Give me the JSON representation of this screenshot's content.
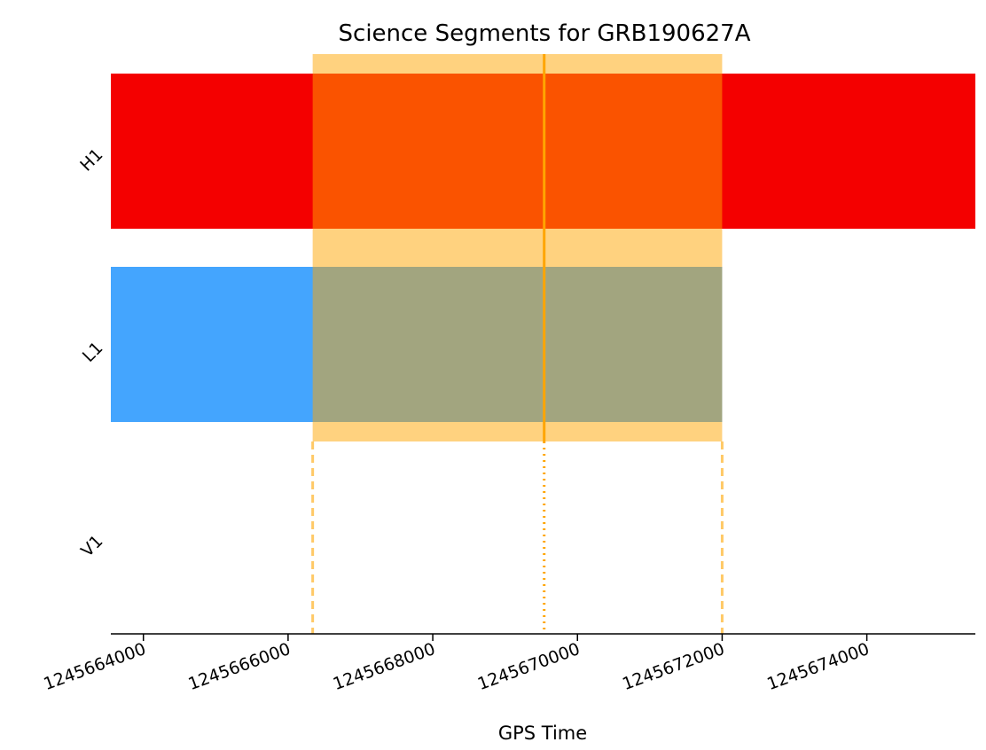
{
  "chart_data": {
    "type": "segment-timeline",
    "title": "Science Segments for GRB190627A",
    "xlabel": "GPS Time",
    "xlim": [
      1245663550,
      1245675500
    ],
    "xticks": [
      1245664000,
      1245666000,
      1245668000,
      1245670000,
      1245672000,
      1245674000
    ],
    "xtick_labels": [
      "1245664000",
      "1245666000",
      "1245668000",
      "1245670000",
      "1245672000",
      "1245674000"
    ],
    "grid": false,
    "rows": [
      {
        "label": "H1",
        "color": "#f40000",
        "segments": [
          [
            1245663550,
            1245675500
          ]
        ]
      },
      {
        "label": "L1",
        "color": "#44a5fe",
        "segments": [
          [
            1245663550,
            1245672000
          ]
        ]
      },
      {
        "label": "V1",
        "color": "#ffffff",
        "segments": []
      }
    ],
    "on_source_window": {
      "start": 1245666340,
      "end": 1245672000,
      "color": "#ffa500",
      "alpha": 0.5
    },
    "trigger_time": 1245669540,
    "trigger_color": "#ffa500"
  }
}
